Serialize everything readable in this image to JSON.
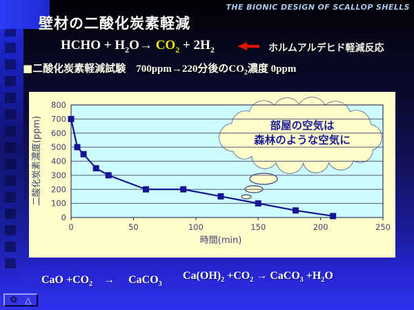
{
  "brand": "THE BIONIC DESIGN OF SCALLOP SHELLS",
  "title": "壁材の二酸化炭素軽減",
  "reaction": {
    "formula_segments": [
      {
        "t": "HCHO + H"
      },
      {
        "t": "2",
        "sub": true
      },
      {
        "t": "O→ "
      },
      {
        "t": "CO",
        "color": "#f2e400"
      },
      {
        "t": "2",
        "sub": true,
        "color": "#f2e400"
      },
      {
        "t": " + 2H"
      },
      {
        "t": "2",
        "sub": true
      }
    ],
    "arrow_color": "#dd1505",
    "label": "ホルムアルデヒド軽減反応"
  },
  "test": {
    "segments": [
      {
        "t": "■",
        "color": "#ffffc8"
      },
      {
        "t": "二酸化炭素軽減試験　"
      },
      {
        "t": "700ppm→220分後のCO",
        "serif": true
      },
      {
        "t": "2",
        "sub": true,
        "serif": true
      },
      {
        "t": "濃度 0ppm",
        "serif": true
      }
    ]
  },
  "chart_data": {
    "type": "line",
    "x": [
      0,
      5,
      10,
      20,
      30,
      60,
      90,
      120,
      150,
      180,
      210
    ],
    "y": [
      700,
      500,
      450,
      350,
      300,
      200,
      200,
      150,
      100,
      50,
      10
    ],
    "xlabel": "時間(min)",
    "ylabel": "二酸化炭素濃度(ppm)",
    "xlim": [
      0,
      250
    ],
    "ylim": [
      0,
      800
    ],
    "xticks": [
      0,
      50,
      100,
      150,
      200,
      250
    ],
    "yticks": [
      0,
      100,
      200,
      300,
      400,
      500,
      600,
      700,
      800
    ],
    "grid": "horizontal-y",
    "legend": "none",
    "line_color": "#141492",
    "marker": "square",
    "marker_color": "#141492",
    "plot_bg": "#cdfdff",
    "panel_bg": "#ffffcc",
    "tick_color": "#3e3e72",
    "annotation": {
      "type": "thought-bubble",
      "lines": [
        "部屋の空気は",
        "森林のような空気に"
      ],
      "fill": "#ffffcc",
      "stroke": "#3a3a8a",
      "text_color": "#1c1c96"
    }
  },
  "equations": {
    "left_segments": [
      {
        "t": "CaO +CO"
      },
      {
        "t": "2",
        "sub": true
      },
      {
        "t": "　→　 CaCO"
      },
      {
        "t": "3",
        "sub": true
      }
    ],
    "right_segments": [
      {
        "t": "Ca(OH)"
      },
      {
        "t": "2",
        "sub": true
      },
      {
        "t": " +CO"
      },
      {
        "t": "2",
        "sub": true
      },
      {
        "t": " → CaCO"
      },
      {
        "t": "3",
        "sub": true
      },
      {
        "t": " +H"
      },
      {
        "t": "2",
        "sub": true
      },
      {
        "t": "O"
      }
    ]
  },
  "nav": {
    "buttons": [
      {
        "name": "flower",
        "icon": "flower-icon"
      },
      {
        "name": "triangle",
        "icon": "triangle-icon"
      }
    ]
  }
}
